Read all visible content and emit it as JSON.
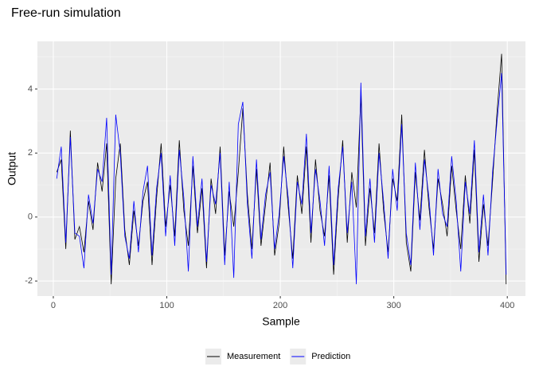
{
  "chart_data": {
    "type": "line",
    "title": "Free-run simulation",
    "x_label": "Sample",
    "y_label": "Output",
    "x": [
      3,
      7,
      11,
      15,
      19,
      23,
      27,
      31,
      35,
      39,
      43,
      47,
      51,
      55,
      59,
      63,
      67,
      71,
      75,
      79,
      83,
      87,
      91,
      95,
      99,
      103,
      107,
      111,
      115,
      119,
      123,
      127,
      131,
      135,
      139,
      143,
      147,
      151,
      155,
      159,
      163,
      167,
      171,
      175,
      179,
      183,
      187,
      191,
      195,
      199,
      203,
      207,
      211,
      215,
      219,
      223,
      227,
      231,
      235,
      239,
      243,
      247,
      251,
      255,
      259,
      263,
      267,
      271,
      275,
      279,
      283,
      287,
      291,
      295,
      299,
      303,
      307,
      311,
      315,
      319,
      323,
      327,
      331,
      335,
      339,
      343,
      347,
      351,
      355,
      359,
      363,
      367,
      371,
      375,
      379,
      383,
      387,
      391,
      395,
      399
    ],
    "series": [
      {
        "name": "Measurement",
        "color": "#000000",
        "values": [
          1.4,
          1.8,
          -1.0,
          2.7,
          -0.7,
          -0.3,
          -1.1,
          0.5,
          -0.4,
          1.7,
          0.8,
          2.3,
          -2.1,
          1.2,
          2.3,
          -0.4,
          -1.5,
          0.2,
          -0.9,
          0.5,
          1.1,
          -1.5,
          0.6,
          2.3,
          -0.3,
          1.0,
          -0.6,
          2.4,
          0.2,
          -0.9,
          1.6,
          -0.5,
          0.9,
          -1.6,
          1.2,
          0.1,
          2.2,
          -1.2,
          0.8,
          -0.3,
          1.4,
          3.4,
          0.7,
          -1.0,
          1.5,
          -0.9,
          0.4,
          1.7,
          -1.2,
          -0.2,
          2.2,
          0.3,
          -1.3,
          1.3,
          0.1,
          2.2,
          -0.8,
          1.8,
          0.2,
          -0.6,
          1.3,
          -1.8,
          0.6,
          2.4,
          -0.8,
          1.4,
          0.3,
          3.8,
          -0.9,
          0.9,
          -0.5,
          2.3,
          0.2,
          -1.1,
          1.2,
          0.5,
          3.2,
          -0.8,
          -1.7,
          1.4,
          -0.1,
          2.1,
          0.3,
          -1.0,
          1.2,
          0.4,
          -0.6,
          1.6,
          0.2,
          -1.0,
          1.3,
          -0.2,
          2.1,
          -1.4,
          0.4,
          -0.9,
          1.1,
          3.3,
          5.1,
          -2.1
        ]
      },
      {
        "name": "Prediction",
        "color": "#0000ff",
        "values": [
          1.2,
          2.2,
          -0.8,
          2.5,
          -0.5,
          -0.6,
          -1.6,
          0.7,
          -0.2,
          1.5,
          1.1,
          3.1,
          -1.8,
          3.2,
          2.0,
          -0.6,
          -1.3,
          0.5,
          -1.1,
          0.8,
          1.6,
          -1.2,
          0.9,
          2.0,
          -0.6,
          1.3,
          -0.9,
          2.1,
          0.6,
          -1.7,
          1.9,
          -0.3,
          1.2,
          -1.4,
          1.0,
          0.4,
          2.0,
          -1.5,
          1.1,
          -1.9,
          2.9,
          3.6,
          0.4,
          -1.3,
          1.8,
          -0.7,
          0.7,
          1.4,
          -1.0,
          0.1,
          1.9,
          0.6,
          -1.6,
          1.1,
          0.4,
          2.6,
          -0.5,
          1.5,
          0.5,
          -0.9,
          1.6,
          -1.5,
          0.9,
          2.2,
          -0.5,
          1.1,
          -2.1,
          4.2,
          -0.6,
          1.2,
          -0.8,
          2.0,
          0.5,
          -1.3,
          1.5,
          0.2,
          2.9,
          -0.5,
          -1.5,
          1.7,
          -0.4,
          1.8,
          0.6,
          -1.2,
          1.5,
          0.1,
          -0.3,
          1.9,
          0.5,
          -1.7,
          1.1,
          0.1,
          2.4,
          -1.1,
          0.7,
          -1.2,
          1.4,
          3.0,
          4.5,
          -1.8
        ]
      }
    ],
    "xlim": [
      -14,
      416
    ],
    "ylim": [
      -2.47,
      5.49
    ],
    "xticks": [
      0,
      100,
      200,
      300,
      400
    ],
    "yticks": [
      -2,
      0,
      2,
      4
    ],
    "xminor": [
      50,
      150,
      250,
      350
    ],
    "yminor": [
      -1,
      1,
      3,
      5
    ],
    "grid": true,
    "legend": "bottom"
  }
}
